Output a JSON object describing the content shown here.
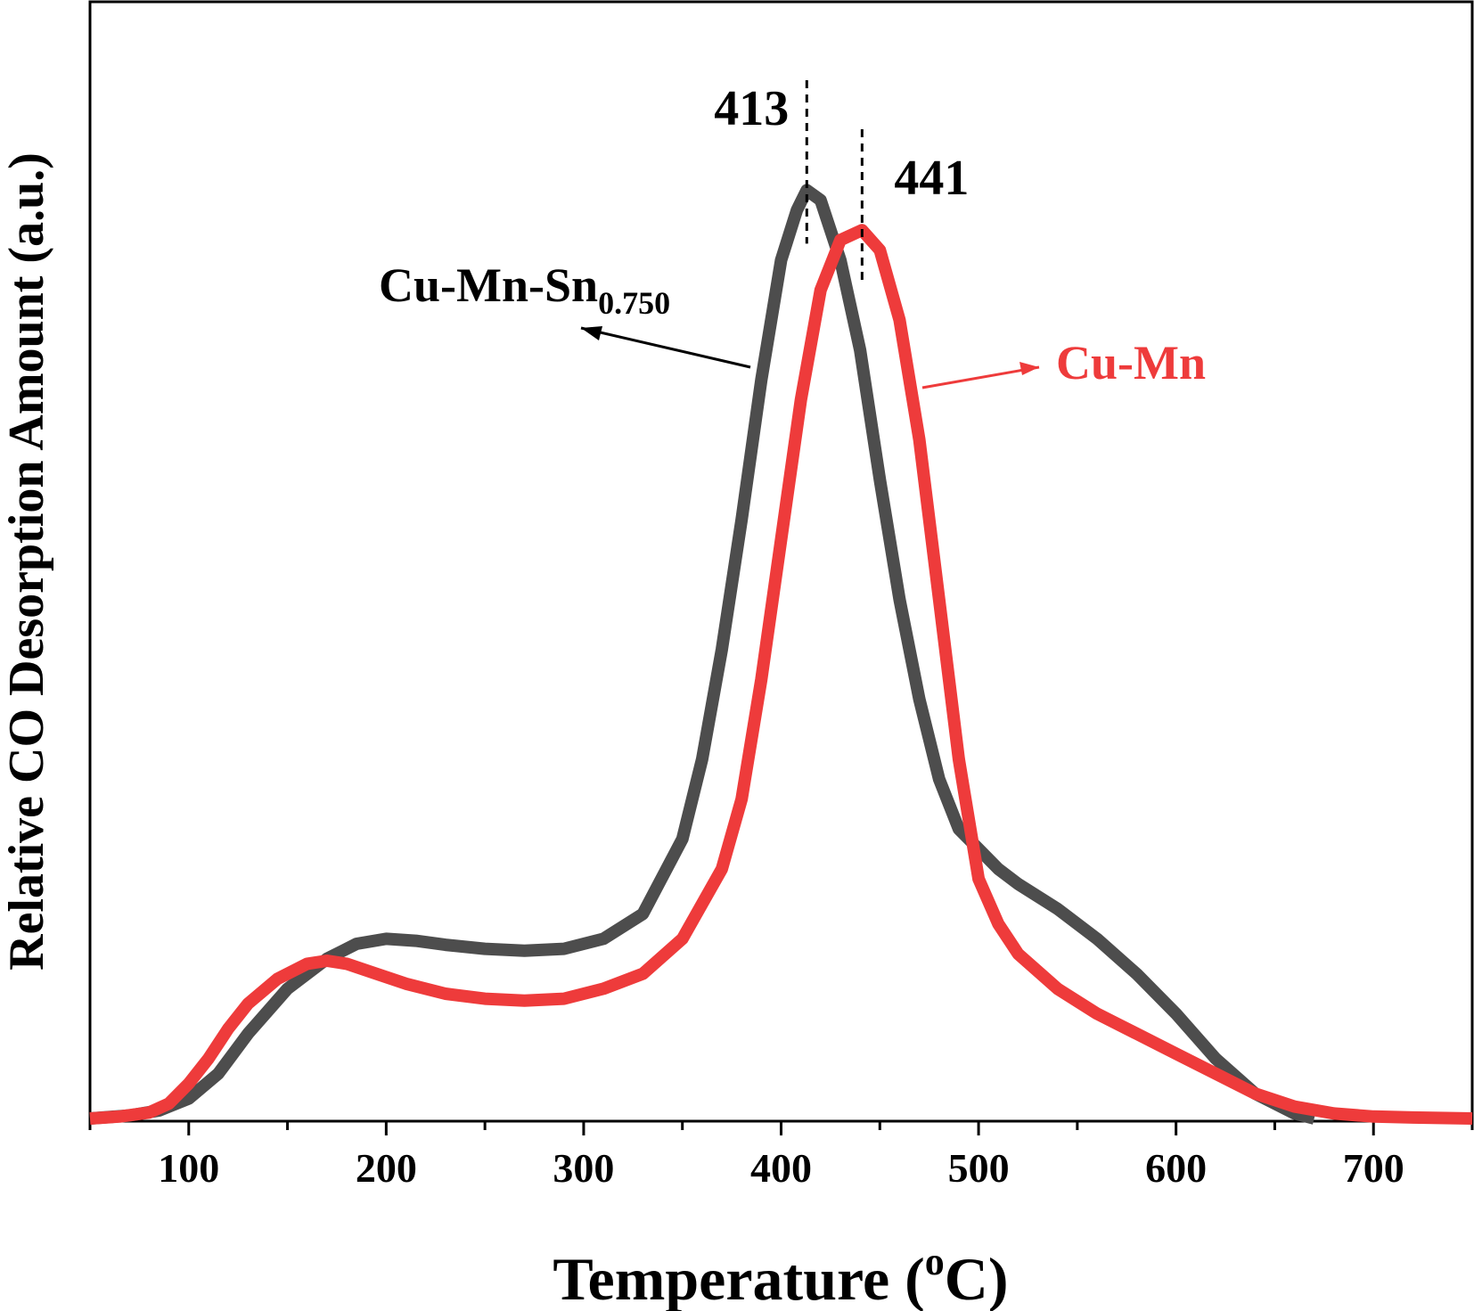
{
  "chart_data": {
    "type": "line",
    "title": "",
    "xlabel_main": "Temperature (",
    "xlabel_sup": "o",
    "xlabel_end": "C)",
    "ylabel": "Relative CO Desorption Amount (a.u.)",
    "xlim": [
      50,
      750
    ],
    "ylim": [
      0,
      1.0
    ],
    "x_ticks": [
      100,
      200,
      300,
      400,
      500,
      600,
      700
    ],
    "grid": false,
    "legend": "none",
    "series": [
      {
        "name": "Cu-Mn-Sn",
        "name_sub": "0.750",
        "color": "#4d4d4d",
        "x": [
          50,
          70,
          85,
          100,
          115,
          130,
          150,
          170,
          185,
          200,
          215,
          230,
          250,
          270,
          290,
          310,
          330,
          350,
          360,
          370,
          380,
          390,
          400,
          408,
          413,
          420,
          430,
          440,
          450,
          460,
          470,
          480,
          490,
          500,
          510,
          520,
          540,
          560,
          580,
          600,
          620,
          640,
          660,
          670
        ],
        "y": [
          0.0,
          0.003,
          0.008,
          0.02,
          0.045,
          0.085,
          0.13,
          0.16,
          0.175,
          0.18,
          0.178,
          0.174,
          0.17,
          0.168,
          0.17,
          0.18,
          0.205,
          0.28,
          0.36,
          0.47,
          0.6,
          0.74,
          0.86,
          0.91,
          0.93,
          0.92,
          0.86,
          0.77,
          0.64,
          0.52,
          0.42,
          0.34,
          0.29,
          0.27,
          0.25,
          0.235,
          0.21,
          0.18,
          0.145,
          0.105,
          0.06,
          0.025,
          0.005,
          0.0
        ]
      },
      {
        "name": "Cu-Mn",
        "name_sub": "",
        "color": "#ee3b3b",
        "x": [
          50,
          65,
          80,
          90,
          100,
          110,
          120,
          130,
          145,
          160,
          170,
          180,
          195,
          210,
          230,
          250,
          270,
          290,
          310,
          330,
          350,
          370,
          380,
          390,
          400,
          410,
          420,
          430,
          441,
          450,
          460,
          470,
          480,
          490,
          500,
          510,
          520,
          540,
          560,
          580,
          600,
          620,
          640,
          660,
          680,
          700,
          720,
          750
        ],
        "y": [
          0.0,
          0.002,
          0.006,
          0.015,
          0.035,
          0.06,
          0.09,
          0.115,
          0.14,
          0.155,
          0.158,
          0.155,
          0.145,
          0.135,
          0.125,
          0.12,
          0.118,
          0.12,
          0.13,
          0.145,
          0.18,
          0.25,
          0.32,
          0.44,
          0.58,
          0.72,
          0.83,
          0.88,
          0.89,
          0.87,
          0.8,
          0.68,
          0.52,
          0.36,
          0.24,
          0.195,
          0.165,
          0.13,
          0.105,
          0.085,
          0.065,
          0.045,
          0.025,
          0.012,
          0.005,
          0.002,
          0.001,
          0.0
        ]
      }
    ],
    "annotations": [
      {
        "text": "413",
        "x": 413,
        "y": 0.93
      },
      {
        "text": "441",
        "x": 441,
        "y": 0.89
      }
    ]
  }
}
